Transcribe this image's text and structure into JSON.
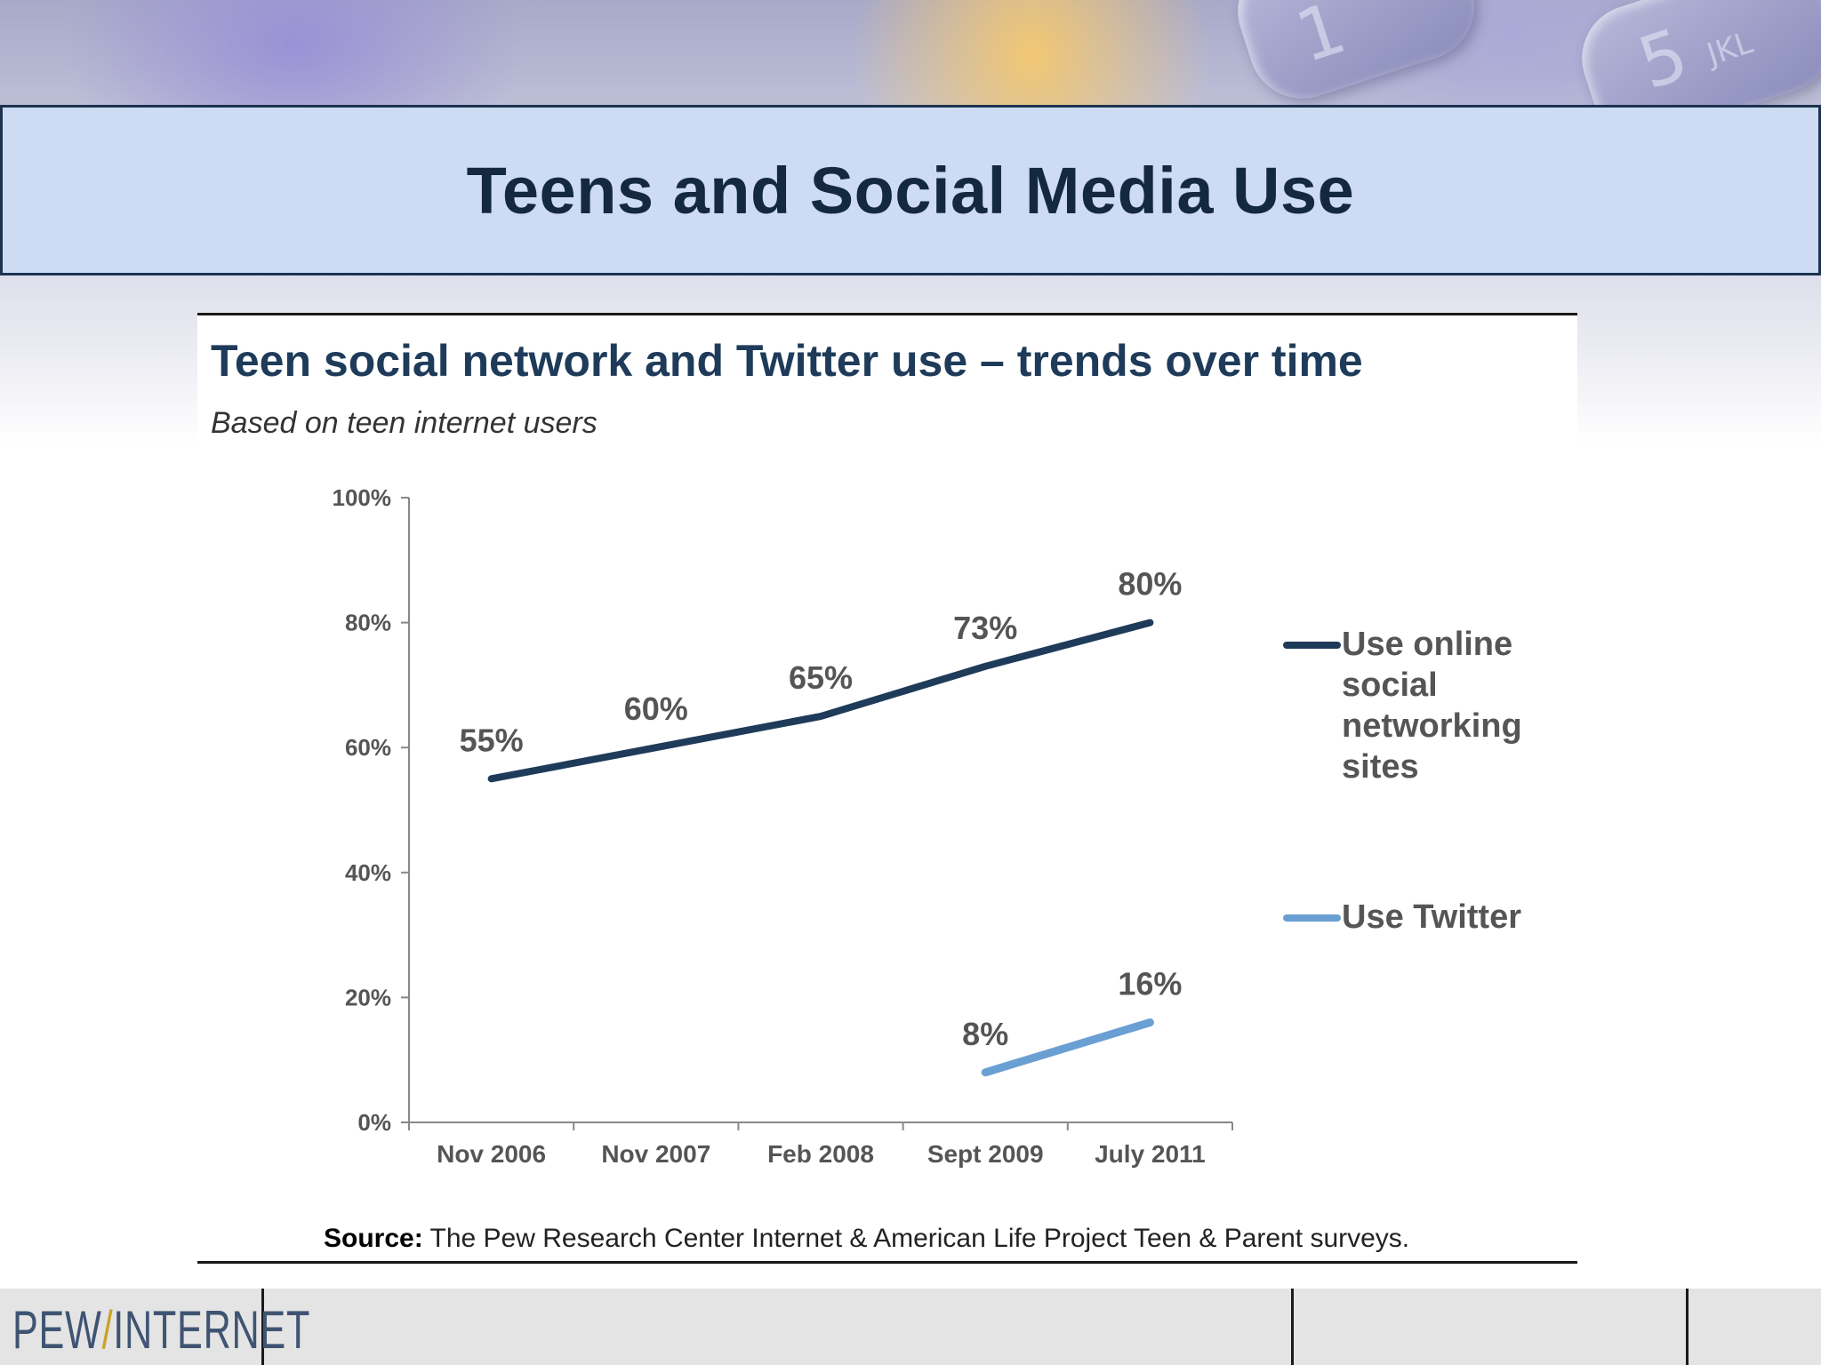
{
  "slide": {
    "title": "Teens and Social Media Use",
    "footer_logo": {
      "left": "PEW",
      "separator": "/",
      "right": "INTERNET"
    }
  },
  "phone_keys": [
    {
      "glyph": "1"
    },
    {
      "glyph": "5",
      "sub": "JKL"
    }
  ],
  "colors": {
    "series_social": "#1f3b5a",
    "series_twitter": "#6a9fd4",
    "title_band": "#cddcf3"
  },
  "chart_data": {
    "type": "line",
    "title": "Teen social network and Twitter use – trends over time",
    "subtitle": "Based on teen internet users",
    "categories": [
      "Nov 2006",
      "Nov 2007",
      "Feb 2008",
      "Sept 2009",
      "July 2011"
    ],
    "series": [
      {
        "name": "Use online social networking sites",
        "values": [
          55,
          60,
          65,
          73,
          80
        ],
        "labels": [
          "55%",
          "60%",
          "65%",
          "73%",
          "80%"
        ]
      },
      {
        "name": "Use Twitter",
        "values": [
          null,
          null,
          null,
          8,
          16
        ],
        "labels": [
          "",
          "",
          "",
          "8%",
          "16%"
        ]
      }
    ],
    "ylim": [
      0,
      100
    ],
    "yticks": [
      0,
      20,
      40,
      60,
      80,
      100
    ],
    "ytick_labels": [
      "0%",
      "20%",
      "40%",
      "60%",
      "80%",
      "100%"
    ],
    "legend_position": "right",
    "grid": false,
    "source_label": "Source:",
    "source_text": " The Pew Research Center Internet & American Life Project Teen & Parent surveys."
  }
}
